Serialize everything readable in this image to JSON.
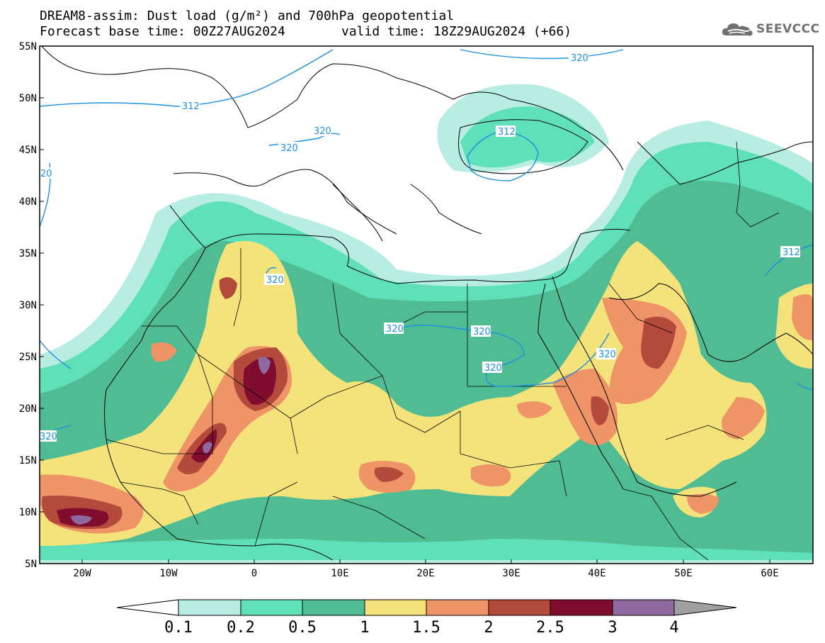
{
  "title": {
    "line1": "DREAM8-assim: Dust load (g/m²) and 700hPa geopotential",
    "line2_left": "Forecast base time: 00Z27AUG2024",
    "line2_right": "valid time: 18Z29AUG2024 (+66)"
  },
  "logo": {
    "text": "SEEVCCC",
    "icon": "cloud-logo-icon"
  },
  "colors": {
    "c01": "#b7ede2",
    "c02": "#5fe0b8",
    "c05": "#4fbc93",
    "c1": "#f4e27a",
    "c15": "#ee9466",
    "c2": "#b34a3b",
    "c25": "#800d2e",
    "c3": "#8e6aa0",
    "c4": "#a0a0a0",
    "contour": "#1e90e0",
    "coast": "#000000"
  },
  "map": {
    "lon_range": [
      -25,
      65
    ],
    "lat_range": [
      5,
      55
    ],
    "lat_ticks": [
      "55N",
      "50N",
      "45N",
      "40N",
      "35N",
      "30N",
      "25N",
      "20N",
      "15N",
      "10N",
      "5N"
    ],
    "lon_ticks": [
      "20W",
      "10W",
      "0",
      "10E",
      "20E",
      "30E",
      "40E",
      "50E",
      "60E"
    ],
    "contour_labels": [
      "320",
      "312",
      "320",
      "320",
      "312",
      "20",
      "320",
      "320",
      "320",
      "320",
      "320",
      "320",
      "312"
    ]
  },
  "colorbar": {
    "labels": [
      "0.1",
      "0.2",
      "0.5",
      "1",
      "1.5",
      "2",
      "2.5",
      "3",
      "4"
    ]
  }
}
